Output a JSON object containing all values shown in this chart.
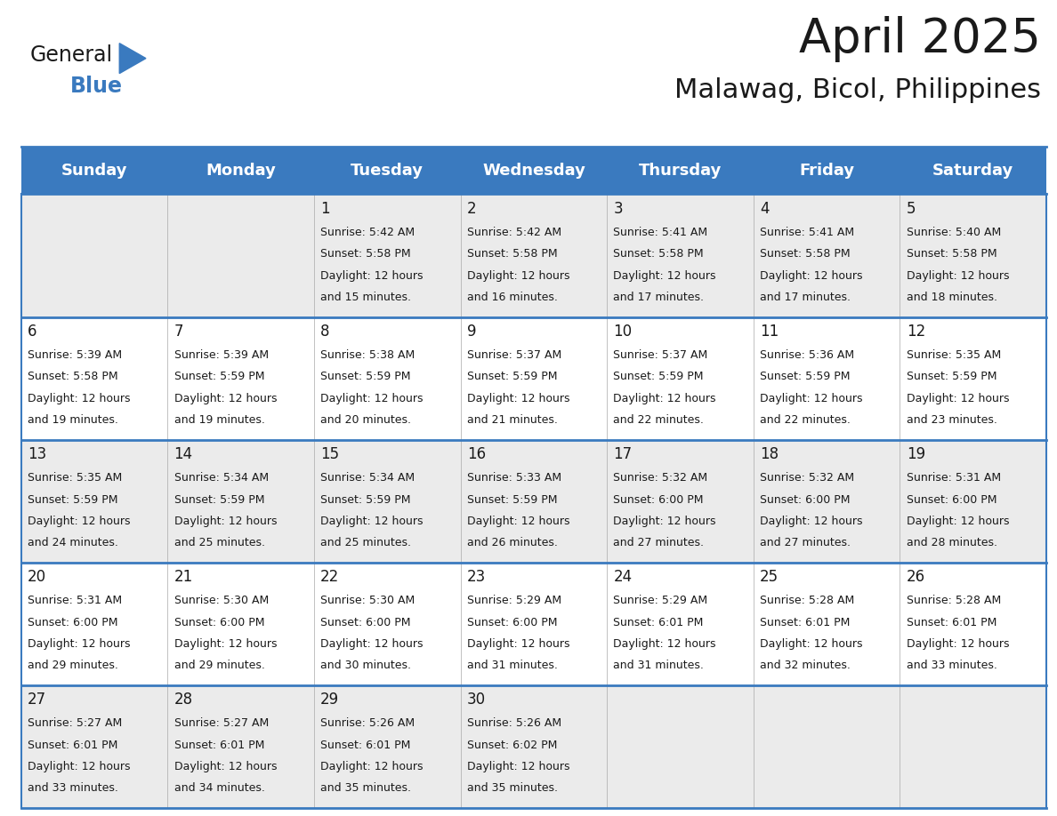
{
  "title": "April 2025",
  "subtitle": "Malawag, Bicol, Philippines",
  "header_bg": "#3a7abf",
  "header_text_color": "#ffffff",
  "cell_bg_odd": "#ebebeb",
  "cell_bg_even": "#ffffff",
  "border_color": "#3a7abf",
  "text_color": "#333333",
  "days_of_week": [
    "Sunday",
    "Monday",
    "Tuesday",
    "Wednesday",
    "Thursday",
    "Friday",
    "Saturday"
  ],
  "weeks": [
    [
      {
        "day": "",
        "sunrise": "",
        "sunset": "",
        "daylight": ""
      },
      {
        "day": "",
        "sunrise": "",
        "sunset": "",
        "daylight": ""
      },
      {
        "day": "1",
        "sunrise": "5:42 AM",
        "sunset": "5:58 PM",
        "daylight": "and 15 minutes."
      },
      {
        "day": "2",
        "sunrise": "5:42 AM",
        "sunset": "5:58 PM",
        "daylight": "and 16 minutes."
      },
      {
        "day": "3",
        "sunrise": "5:41 AM",
        "sunset": "5:58 PM",
        "daylight": "and 17 minutes."
      },
      {
        "day": "4",
        "sunrise": "5:41 AM",
        "sunset": "5:58 PM",
        "daylight": "and 17 minutes."
      },
      {
        "day": "5",
        "sunrise": "5:40 AM",
        "sunset": "5:58 PM",
        "daylight": "and 18 minutes."
      }
    ],
    [
      {
        "day": "6",
        "sunrise": "5:39 AM",
        "sunset": "5:58 PM",
        "daylight": "and 19 minutes."
      },
      {
        "day": "7",
        "sunrise": "5:39 AM",
        "sunset": "5:59 PM",
        "daylight": "and 19 minutes."
      },
      {
        "day": "8",
        "sunrise": "5:38 AM",
        "sunset": "5:59 PM",
        "daylight": "and 20 minutes."
      },
      {
        "day": "9",
        "sunrise": "5:37 AM",
        "sunset": "5:59 PM",
        "daylight": "and 21 minutes."
      },
      {
        "day": "10",
        "sunrise": "5:37 AM",
        "sunset": "5:59 PM",
        "daylight": "and 22 minutes."
      },
      {
        "day": "11",
        "sunrise": "5:36 AM",
        "sunset": "5:59 PM",
        "daylight": "and 22 minutes."
      },
      {
        "day": "12",
        "sunrise": "5:35 AM",
        "sunset": "5:59 PM",
        "daylight": "and 23 minutes."
      }
    ],
    [
      {
        "day": "13",
        "sunrise": "5:35 AM",
        "sunset": "5:59 PM",
        "daylight": "and 24 minutes."
      },
      {
        "day": "14",
        "sunrise": "5:34 AM",
        "sunset": "5:59 PM",
        "daylight": "and 25 minutes."
      },
      {
        "day": "15",
        "sunrise": "5:34 AM",
        "sunset": "5:59 PM",
        "daylight": "and 25 minutes."
      },
      {
        "day": "16",
        "sunrise": "5:33 AM",
        "sunset": "5:59 PM",
        "daylight": "and 26 minutes."
      },
      {
        "day": "17",
        "sunrise": "5:32 AM",
        "sunset": "6:00 PM",
        "daylight": "and 27 minutes."
      },
      {
        "day": "18",
        "sunrise": "5:32 AM",
        "sunset": "6:00 PM",
        "daylight": "and 27 minutes."
      },
      {
        "day": "19",
        "sunrise": "5:31 AM",
        "sunset": "6:00 PM",
        "daylight": "and 28 minutes."
      }
    ],
    [
      {
        "day": "20",
        "sunrise": "5:31 AM",
        "sunset": "6:00 PM",
        "daylight": "and 29 minutes."
      },
      {
        "day": "21",
        "sunrise": "5:30 AM",
        "sunset": "6:00 PM",
        "daylight": "and 29 minutes."
      },
      {
        "day": "22",
        "sunrise": "5:30 AM",
        "sunset": "6:00 PM",
        "daylight": "and 30 minutes."
      },
      {
        "day": "23",
        "sunrise": "5:29 AM",
        "sunset": "6:00 PM",
        "daylight": "and 31 minutes."
      },
      {
        "day": "24",
        "sunrise": "5:29 AM",
        "sunset": "6:01 PM",
        "daylight": "and 31 minutes."
      },
      {
        "day": "25",
        "sunrise": "5:28 AM",
        "sunset": "6:01 PM",
        "daylight": "and 32 minutes."
      },
      {
        "day": "26",
        "sunrise": "5:28 AM",
        "sunset": "6:01 PM",
        "daylight": "and 33 minutes."
      }
    ],
    [
      {
        "day": "27",
        "sunrise": "5:27 AM",
        "sunset": "6:01 PM",
        "daylight": "and 33 minutes."
      },
      {
        "day": "28",
        "sunrise": "5:27 AM",
        "sunset": "6:01 PM",
        "daylight": "and 34 minutes."
      },
      {
        "day": "29",
        "sunrise": "5:26 AM",
        "sunset": "6:01 PM",
        "daylight": "and 35 minutes."
      },
      {
        "day": "30",
        "sunrise": "5:26 AM",
        "sunset": "6:02 PM",
        "daylight": "and 35 minutes."
      },
      {
        "day": "",
        "sunrise": "",
        "sunset": "",
        "daylight": ""
      },
      {
        "day": "",
        "sunrise": "",
        "sunset": "",
        "daylight": ""
      },
      {
        "day": "",
        "sunrise": "",
        "sunset": "",
        "daylight": ""
      }
    ]
  ],
  "logo_color_general": "#1a1a1a",
  "logo_color_blue": "#3a7abf",
  "logo_triangle_color": "#3a7abf",
  "title_fontsize": 38,
  "subtitle_fontsize": 22,
  "dow_fontsize": 13,
  "day_num_fontsize": 12,
  "cell_text_fontsize": 9
}
